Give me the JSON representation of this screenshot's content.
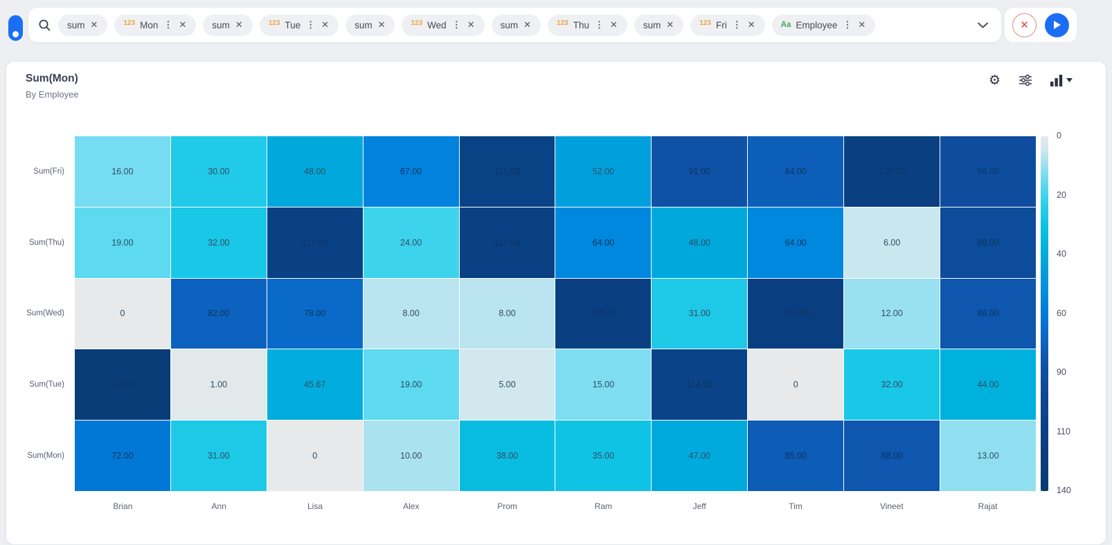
{
  "topbar": {
    "chips": [
      {
        "prefix": "",
        "label": "sum",
        "menu": false
      },
      {
        "prefix": "123",
        "label": "Mon",
        "menu": true
      },
      {
        "prefix": "",
        "label": "sum",
        "menu": false
      },
      {
        "prefix": "123",
        "label": "Tue",
        "menu": true
      },
      {
        "prefix": "",
        "label": "sum",
        "menu": false
      },
      {
        "prefix": "123",
        "label": "Wed",
        "menu": true
      },
      {
        "prefix": "",
        "label": "sum",
        "menu": false
      },
      {
        "prefix": "123",
        "label": "Thu",
        "menu": true
      },
      {
        "prefix": "",
        "label": "sum",
        "menu": false
      },
      {
        "prefix": "123",
        "label": "Fri",
        "menu": true
      },
      {
        "prefix": "Aa",
        "label": "Employee",
        "menu": true
      }
    ],
    "prefix_colors": {
      "123": "#efa43e",
      "Aa": "#43a85c"
    },
    "close_glyph": "✕",
    "kebab_glyph": "⋮"
  },
  "chart": {
    "title": "Sum(Mon)",
    "subtitle": "By Employee"
  },
  "chart_data": {
    "type": "heatmap",
    "title": "Sum(Mon)",
    "subtitle": "By Employee",
    "x_categories": [
      "Brian",
      "Ann",
      "Lisa",
      "Alex",
      "Prom",
      "Ram",
      "Jeff",
      "Tim",
      "Vineet",
      "Rajat"
    ],
    "y_categories": [
      "Sum(Fri)",
      "Sum(Thu)",
      "Sum(Wed)",
      "Sum(Tue)",
      "Sum(Mon)"
    ],
    "values": [
      [
        16,
        30,
        48,
        67,
        115,
        52,
        91,
        84,
        120,
        96
      ],
      [
        19,
        32,
        117,
        24,
        117,
        64,
        48,
        64,
        6,
        98
      ],
      [
        0,
        82,
        78,
        8,
        8,
        123,
        31,
        123,
        12,
        88
      ],
      [
        132,
        1,
        45.67,
        19,
        5,
        15,
        114,
        0,
        32,
        44
      ],
      [
        72,
        31,
        0,
        10,
        38,
        35,
        47,
        85,
        88,
        13
      ]
    ],
    "labels": [
      [
        "16.00",
        "30.00",
        "48.00",
        "67.00",
        "115.00",
        "52.00",
        "91.00",
        "84.00",
        "120.00",
        "96.00"
      ],
      [
        "19.00",
        "32.00",
        "117.00",
        "24.00",
        "117.00",
        "64.00",
        "48.00",
        "64.00",
        "6.00",
        "98.00"
      ],
      [
        "0",
        "82.00",
        "78.00",
        "8.00",
        "8.00",
        "123.00",
        "31.00",
        "123.00",
        "12.00",
        "88.00"
      ],
      [
        "132.00",
        "1.00",
        "45.67",
        "19.00",
        "5.00",
        "15.00",
        "114.00",
        "0",
        "32.00",
        "44.00"
      ],
      [
        "72.00",
        "31.00",
        "0",
        "10.00",
        "38.00",
        "35.00",
        "47.00",
        "85.00",
        "88.00",
        "13.00"
      ]
    ],
    "legend_ticks": [
      "0",
      "20",
      "40",
      "60",
      "90",
      "110",
      "140"
    ],
    "legend_position": "right",
    "grid": true,
    "color_min": 0,
    "color_max": 140,
    "color_stops": [
      [
        0,
        "#e7e9ea"
      ],
      [
        5,
        "#d0e8ee"
      ],
      [
        10,
        "#abe2f0"
      ],
      [
        15,
        "#7eddf1"
      ],
      [
        20,
        "#55d8f0"
      ],
      [
        28,
        "#27cdea"
      ],
      [
        35,
        "#0fc3e4"
      ],
      [
        42,
        "#00b5dd"
      ],
      [
        50,
        "#00a4dc"
      ],
      [
        60,
        "#008fe0"
      ],
      [
        70,
        "#007cdb"
      ],
      [
        80,
        "#0b66c4"
      ],
      [
        90,
        "#0f52a8"
      ],
      [
        100,
        "#0d4a96"
      ],
      [
        115,
        "#0a4286"
      ],
      [
        140,
        "#083a72"
      ]
    ]
  }
}
